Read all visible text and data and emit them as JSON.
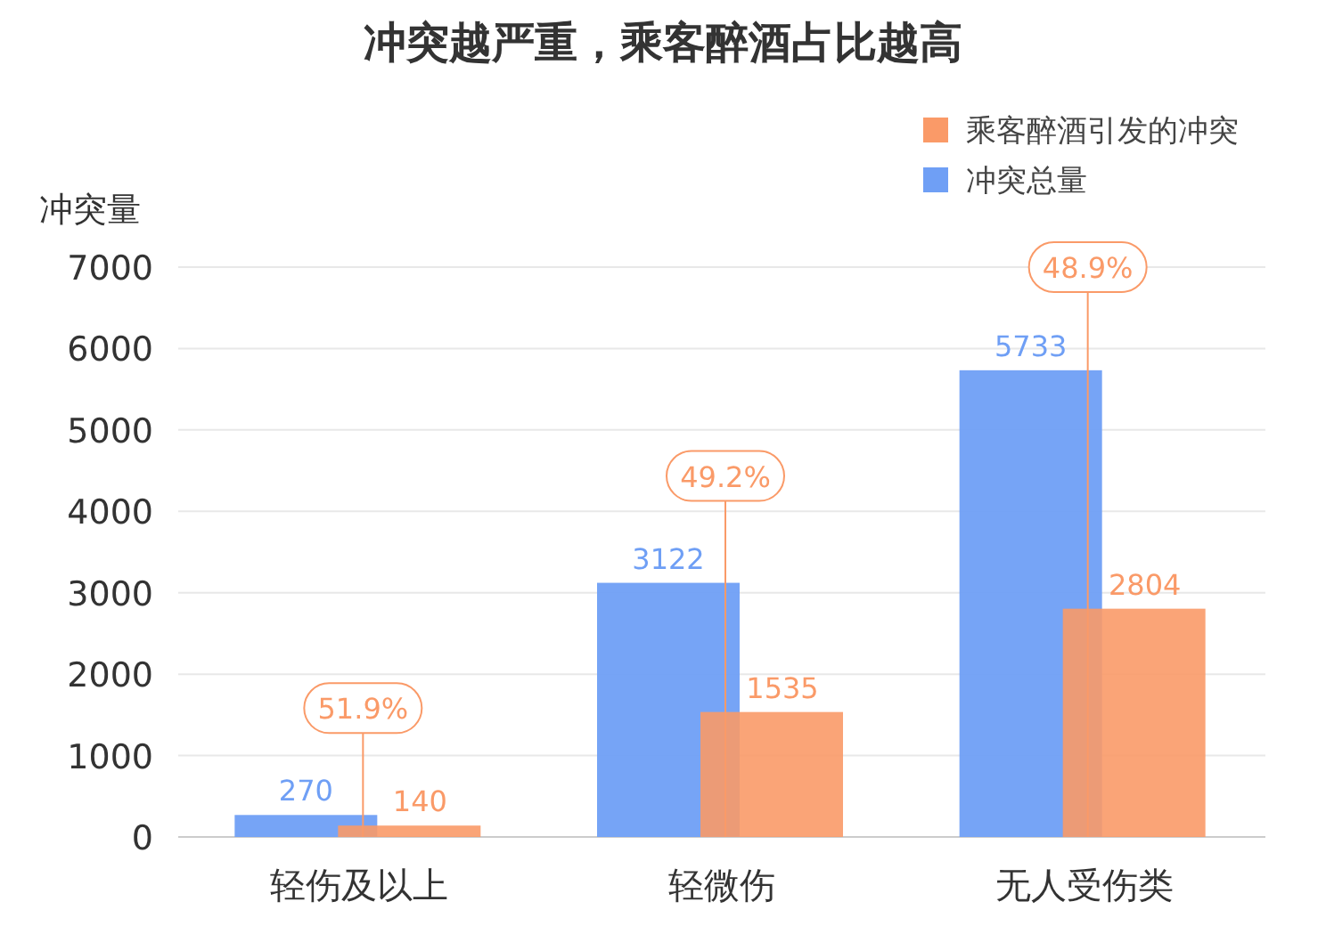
{
  "chart_data": {
    "type": "bar",
    "title": "冲突越严重，乘客醉酒占比越高",
    "ylabel": "冲突量",
    "categories": [
      "轻伤及以上",
      "轻微伤",
      "无人受伤类"
    ],
    "series": [
      {
        "name": "冲突总量",
        "color": "#6f9ff5",
        "values": [
          270,
          3122,
          5733
        ]
      },
      {
        "name": "乘客醉酒引发的冲突",
        "color": "#fa9a68",
        "values": [
          140,
          1535,
          2804
        ]
      }
    ],
    "ylim": [
      0,
      7000
    ],
    "yticks": [
      0,
      1000,
      2000,
      3000,
      4000,
      5000,
      6000,
      7000
    ],
    "grid": "y",
    "legend": "top right",
    "data_labels": true,
    "annotations": [
      {
        "text": "51.9%",
        "x": "轻伤及以上",
        "y": 0
      },
      {
        "text": "49.2%",
        "x": "轻微伤",
        "y": 0
      },
      {
        "text": "48.9%",
        "x": "无人受伤类",
        "y": 0
      }
    ]
  }
}
